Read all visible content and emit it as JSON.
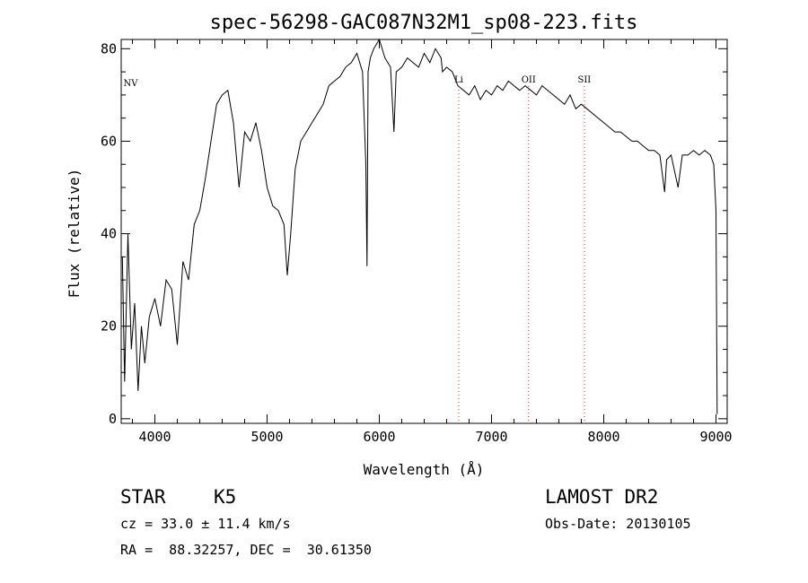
{
  "chart_data": {
    "type": "line",
    "title": "spec-56298-GAC087N32M1_sp08-223.fits",
    "xlabel": "Wavelength (Å)",
    "ylabel": "Flux (relative)",
    "xlim": [
      3700,
      9100
    ],
    "ylim": [
      -1,
      82
    ],
    "xticks": [
      4000,
      5000,
      6000,
      7000,
      8000,
      9000
    ],
    "yticks": [
      0,
      20,
      40,
      60,
      80
    ],
    "grid": false,
    "series": [
      {
        "x": [
          3710,
          3730,
          3760,
          3790,
          3820,
          3850,
          3880,
          3910,
          3950,
          4000,
          4050,
          4100,
          4150,
          4200,
          4250,
          4300,
          4350,
          4400,
          4450,
          4500,
          4550,
          4600,
          4650,
          4700,
          4750,
          4800,
          4850,
          4900,
          4950,
          5000,
          5050,
          5100,
          5150,
          5180,
          5210,
          5250,
          5300,
          5350,
          5400,
          5450,
          5500,
          5550,
          5600,
          5650,
          5700,
          5750,
          5800,
          5850,
          5880,
          5890,
          5900,
          5920,
          5950,
          6000,
          6050,
          6100,
          6130,
          6150,
          6200,
          6250,
          6300,
          6350,
          6400,
          6450,
          6500,
          6550,
          6563,
          6600,
          6650,
          6700,
          6750,
          6800,
          6850,
          6900,
          6950,
          7000,
          7050,
          7100,
          7150,
          7200,
          7250,
          7300,
          7350,
          7400,
          7450,
          7500,
          7550,
          7600,
          7650,
          7700,
          7750,
          7800,
          7850,
          7900,
          7950,
          8000,
          8050,
          8100,
          8150,
          8200,
          8250,
          8300,
          8350,
          8400,
          8450,
          8500,
          8542,
          8560,
          8600,
          8662,
          8700,
          8750,
          8800,
          8850,
          8900,
          8950,
          8980,
          9000,
          9010
        ],
        "y": [
          35,
          8,
          40,
          15,
          25,
          6,
          20,
          12,
          22,
          26,
          20,
          30,
          28,
          16,
          34,
          30,
          42,
          45,
          52,
          60,
          68,
          70,
          71,
          64,
          50,
          62,
          60,
          64,
          58,
          50,
          46,
          45,
          42,
          31,
          40,
          54,
          60,
          62,
          64,
          66,
          68,
          72,
          73,
          74,
          76,
          77,
          79,
          75,
          55,
          33,
          75,
          78,
          80,
          82,
          78,
          76,
          62,
          75,
          76,
          78,
          77,
          76,
          79,
          77,
          80,
          78,
          75,
          76,
          75,
          72,
          71,
          70,
          72,
          69,
          71,
          70,
          72,
          71,
          73,
          72,
          71,
          72,
          71,
          70,
          72,
          71,
          70,
          69,
          68,
          70,
          67,
          68,
          67,
          66,
          65,
          64,
          63,
          62,
          62,
          61,
          60,
          60,
          59,
          58,
          58,
          57,
          49,
          56,
          57,
          50,
          57,
          57,
          58,
          57,
          58,
          57,
          55,
          45,
          1
        ]
      }
    ],
    "lines": [
      {
        "label": "Li",
        "x": 6708
      },
      {
        "label": "OII",
        "x": 7330
      },
      {
        "label": "SII",
        "x": 7827
      }
    ],
    "edge_labels": [
      {
        "label": "NV",
        "x": 3720
      }
    ]
  },
  "info": {
    "object_type": "STAR",
    "subclass": "K5",
    "survey": "LAMOST DR2",
    "redshift": "cz = 33.0 ± 11.4 km/s",
    "obs_date": "Obs-Date: 20130105",
    "coords": "RA =  88.32257, DEC =  30.61350"
  }
}
